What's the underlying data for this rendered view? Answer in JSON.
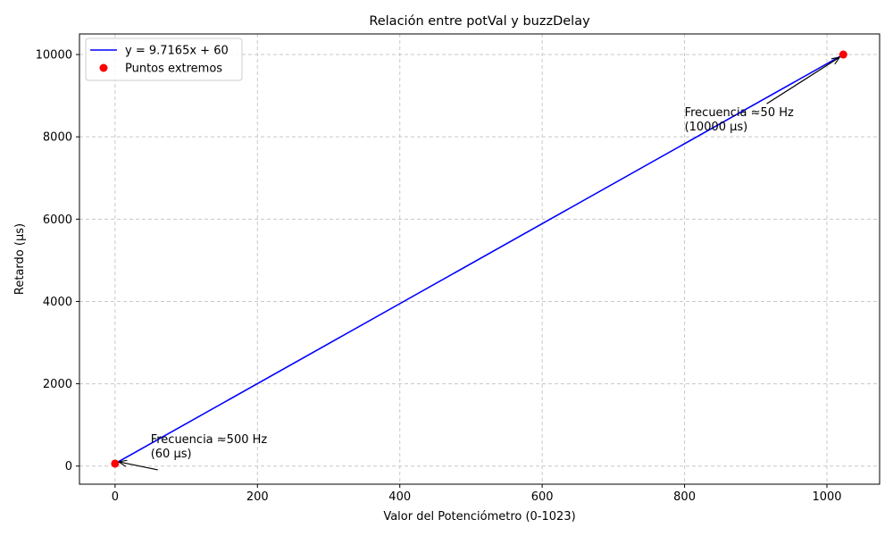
{
  "chart_data": {
    "type": "line",
    "title": "Relación entre potVal y buzzDelay",
    "xlabel": "Valor del Potenciómetro (0-1023)",
    "ylabel": "Retardo (µs)",
    "xlim": [
      -50,
      1074
    ],
    "ylim": [
      -440,
      10500
    ],
    "xticks": [
      0,
      200,
      400,
      600,
      800,
      1000
    ],
    "yticks": [
      0,
      2000,
      4000,
      6000,
      8000,
      10000
    ],
    "grid": true,
    "legend_position": "top-left",
    "series": [
      {
        "name": "y = 9.7165x + 60",
        "type": "line",
        "color": "#0000ff",
        "x": [
          0,
          1023
        ],
        "y": [
          60,
          10000
        ]
      },
      {
        "name": "Puntos extremos",
        "type": "scatter",
        "color": "#ff0000",
        "x": [
          0,
          1023
        ],
        "y": [
          60,
          10000
        ]
      }
    ],
    "annotations": [
      {
        "lines": [
          "Frecuencia ≈500 Hz",
          "(60 µs)"
        ],
        "point": [
          0,
          60
        ],
        "text_at": [
          50,
          560
        ]
      },
      {
        "lines": [
          "Frecuencia ≈50 Hz",
          "(10000 µs)"
        ],
        "point": [
          1023,
          10000
        ],
        "text_at": [
          800,
          8500
        ]
      }
    ]
  }
}
